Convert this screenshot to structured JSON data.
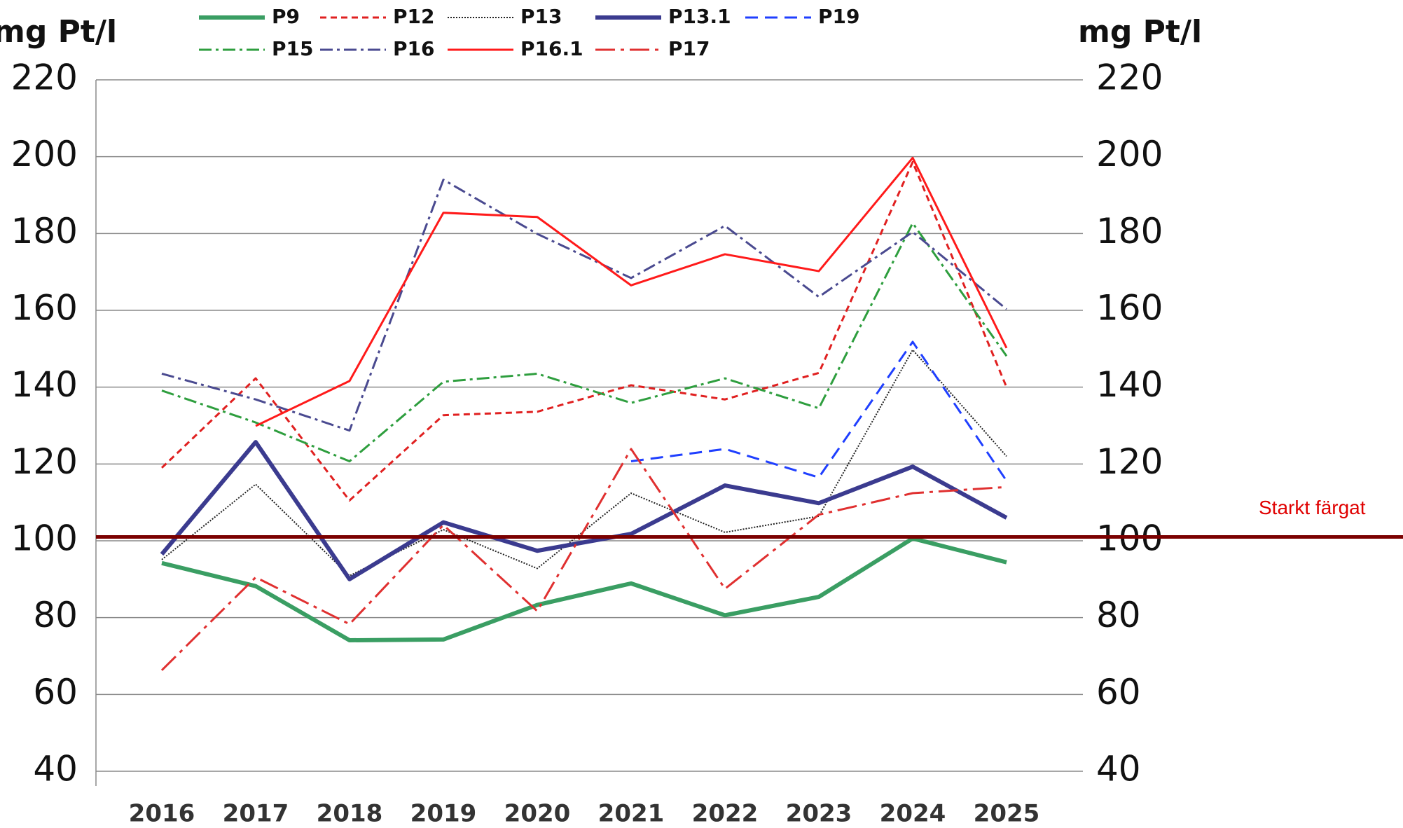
{
  "chart_data": {
    "type": "line",
    "y_label": "mg Pt/l",
    "y2_label": "mg Pt/l",
    "categories": [
      "2016",
      "2017",
      "2018",
      "2019",
      "2020",
      "2021",
      "2022",
      "2023",
      "2024",
      "2025"
    ],
    "series": [
      {
        "name": "P9",
        "color": "#3a9e63",
        "style": "solid",
        "weight": "bold",
        "values": [
          94.2,
          88.2,
          74.1,
          74.3,
          83.3,
          88.9,
          80.6,
          85.4,
          100.6,
          94.4
        ]
      },
      {
        "name": "P12",
        "color": "#e02020",
        "style": "dashed",
        "weight": "normal",
        "values": [
          119,
          142.3,
          110.5,
          132.7,
          133.6,
          140.5,
          136.8,
          143.7,
          198.6,
          140
        ]
      },
      {
        "name": "P13",
        "color": "#222222",
        "style": "dotted",
        "weight": "thin",
        "values": [
          95.1,
          114.7,
          90.9,
          102.9,
          92.8,
          112.4,
          102.2,
          106.4,
          149.7,
          122
        ]
      },
      {
        "name": "P13.1",
        "color": "#3b3b8f",
        "style": "solid",
        "weight": "bold",
        "values": [
          96.5,
          125.7,
          90,
          104.8,
          97.4,
          101.8,
          114.4,
          109.8,
          119.3,
          106
        ]
      },
      {
        "name": "P19",
        "color": "#1f3fff",
        "style": "longdashed",
        "weight": "normal",
        "values": [
          null,
          null,
          null,
          null,
          null,
          120.7,
          123.9,
          116.5,
          151.8,
          115.6
        ]
      },
      {
        "name": "P15",
        "color": "#2e9e3e",
        "style": "dashdot",
        "weight": "normal",
        "values": [
          139.1,
          130.8,
          120.7,
          141.4,
          143.5,
          135.9,
          142.3,
          134.5,
          182.7,
          148.1
        ]
      },
      {
        "name": "P16",
        "color": "#4a4a90",
        "style": "dashdot",
        "weight": "normal",
        "values": [
          143.5,
          136.8,
          128.7,
          194,
          179.9,
          168.4,
          182,
          163.5,
          180.4,
          160.3
        ]
      },
      {
        "name": "P16.1",
        "color": "#ff1a1a",
        "style": "solid",
        "weight": "normal",
        "values": [
          null,
          129.9,
          141.6,
          185.4,
          184.3,
          166.5,
          174.6,
          170.2,
          199.7,
          150.2
        ]
      },
      {
        "name": "P17",
        "color": "#e03030",
        "style": "longdashdot",
        "weight": "normal",
        "values": [
          66.3,
          90.5,
          78.3,
          104.1,
          81.7,
          123.9,
          87.5,
          106.8,
          112.4,
          114
        ]
      }
    ],
    "ylim": [
      40,
      220
    ],
    "yticks": [
      40,
      60,
      80,
      100,
      120,
      140,
      160,
      180,
      200,
      220
    ],
    "y2lim": [
      40,
      220
    ],
    "y2ticks": [
      40,
      60,
      80,
      100,
      120,
      140,
      160,
      180,
      200,
      220
    ],
    "grid": true,
    "legend": "top",
    "threshold": {
      "value": 101,
      "label": "Starkt färgat",
      "color": "#7b0000",
      "label_color": "#e00000"
    }
  }
}
